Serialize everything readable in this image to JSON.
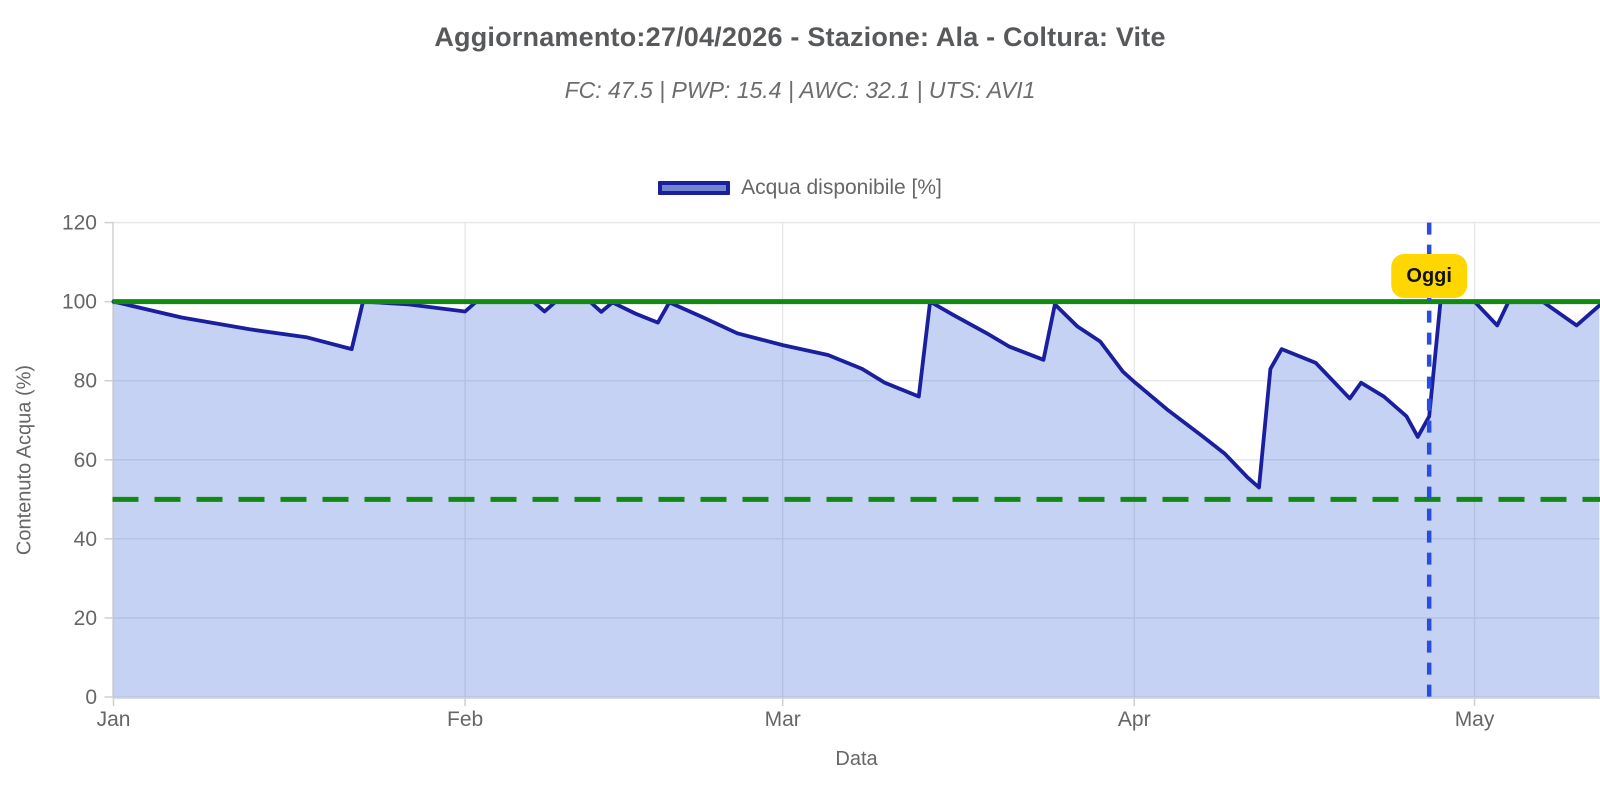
{
  "header": {
    "title": "Aggiornamento:27/04/2026 - Stazione: Ala - Coltura: Vite",
    "subtitle": "FC: 47.5 | PWP: 15.4 | AWC: 32.1 | UTS: AVI1",
    "station_info": {
      "update_date": "27/04/2026",
      "station": "Ala",
      "crop": "Vite",
      "FC": 47.5,
      "PWP": 15.4,
      "AWC": 32.1,
      "UTS": "AVI1"
    }
  },
  "legend": {
    "label": "Acqua disponibile [%]",
    "line_color": "#1a1f9e",
    "swatch_fill": "#7584d2"
  },
  "chart_data": {
    "type": "area",
    "title": "Aggiornamento:27/04/2026 - Stazione: Ala - Coltura: Vite",
    "subtitle": "FC: 47.5 | PWP: 15.4 | AWC: 32.1 | UTS: AVI1",
    "xlabel": "Data",
    "ylabel": "Contenuto Acqua (%)",
    "ylim": [
      0,
      120
    ],
    "yticks": [
      0,
      20,
      40,
      60,
      80,
      100,
      120
    ],
    "x_start": "2026-01-01",
    "x_end": "2026-05-12",
    "xticks": [
      {
        "date": "2026-01-01",
        "label": "Jan"
      },
      {
        "date": "2026-02-01",
        "label": "Feb"
      },
      {
        "date": "2026-03-01",
        "label": "Mar"
      },
      {
        "date": "2026-04-01",
        "label": "Apr"
      },
      {
        "date": "2026-05-01",
        "label": "May"
      }
    ],
    "grid": true,
    "legend_position": "top",
    "series": [
      {
        "name": "Acqua disponibile [%]",
        "color": "#1a1f9e",
        "fill": "rgba(45,90,215,0.27)",
        "points": [
          [
            "2026-01-01",
            100
          ],
          [
            "2026-01-07",
            96
          ],
          [
            "2026-01-13",
            93
          ],
          [
            "2026-01-18",
            91
          ],
          [
            "2026-01-22",
            88
          ],
          [
            "2026-01-23",
            100
          ],
          [
            "2026-01-27",
            99.3
          ],
          [
            "2026-02-01",
            97.5
          ],
          [
            "2026-02-02",
            100
          ],
          [
            "2026-02-07",
            100
          ],
          [
            "2026-02-08",
            97.5
          ],
          [
            "2026-02-09",
            100
          ],
          [
            "2026-02-12",
            100
          ],
          [
            "2026-02-13",
            97.4
          ],
          [
            "2026-02-14",
            99.8
          ],
          [
            "2026-02-16",
            97
          ],
          [
            "2026-02-18",
            94.7
          ],
          [
            "2026-02-19",
            99.8
          ],
          [
            "2026-02-22",
            96
          ],
          [
            "2026-02-25",
            92
          ],
          [
            "2026-03-01",
            89
          ],
          [
            "2026-03-05",
            86.5
          ],
          [
            "2026-03-08",
            83
          ],
          [
            "2026-03-10",
            79.5
          ],
          [
            "2026-03-13",
            76
          ],
          [
            "2026-03-14",
            100
          ],
          [
            "2026-03-16",
            96.7
          ],
          [
            "2026-03-19",
            92
          ],
          [
            "2026-03-21",
            88.6
          ],
          [
            "2026-03-24",
            85.3
          ],
          [
            "2026-03-25",
            99.3
          ],
          [
            "2026-03-27",
            93.7
          ],
          [
            "2026-03-29",
            89.9
          ],
          [
            "2026-03-31",
            82.3
          ],
          [
            "2026-04-01",
            79.7
          ],
          [
            "2026-04-04",
            72.5
          ],
          [
            "2026-04-07",
            66
          ],
          [
            "2026-04-09",
            61.5
          ],
          [
            "2026-04-11",
            55.5
          ],
          [
            "2026-04-12",
            53
          ],
          [
            "2026-04-13",
            83
          ],
          [
            "2026-04-14",
            88
          ],
          [
            "2026-04-17",
            84.5
          ],
          [
            "2026-04-20",
            75.5
          ],
          [
            "2026-04-21",
            79.5
          ],
          [
            "2026-04-23",
            76
          ],
          [
            "2026-04-25",
            71
          ],
          [
            "2026-04-26",
            65.8
          ],
          [
            "2026-04-27",
            71
          ],
          [
            "2026-04-28",
            100
          ],
          [
            "2026-05-01",
            100
          ],
          [
            "2026-05-03",
            94
          ],
          [
            "2026-05-04",
            100
          ],
          [
            "2026-05-07",
            100
          ],
          [
            "2026-05-10",
            94
          ],
          [
            "2026-05-12",
            99
          ]
        ]
      }
    ],
    "reference_lines": [
      {
        "name": "field-capacity-line",
        "value": 100,
        "color": "#108a10",
        "style": "solid"
      },
      {
        "name": "irrigation-threshold-line",
        "value": 50,
        "color": "#108a10",
        "style": "dashed"
      }
    ],
    "today_marker": {
      "date": "2026-04-27",
      "label": "Oggi",
      "line_color": "#2b4ce0",
      "badge_color": "#ffd700",
      "text_color": "#111111"
    }
  },
  "colors": {
    "title": "#58595b",
    "subtitle": "#6c6d6f",
    "axis_text": "#666666",
    "grid": "#e6e6e6",
    "axis_line": "#d0d0d0",
    "tick_mark": "#cfcfcf"
  }
}
